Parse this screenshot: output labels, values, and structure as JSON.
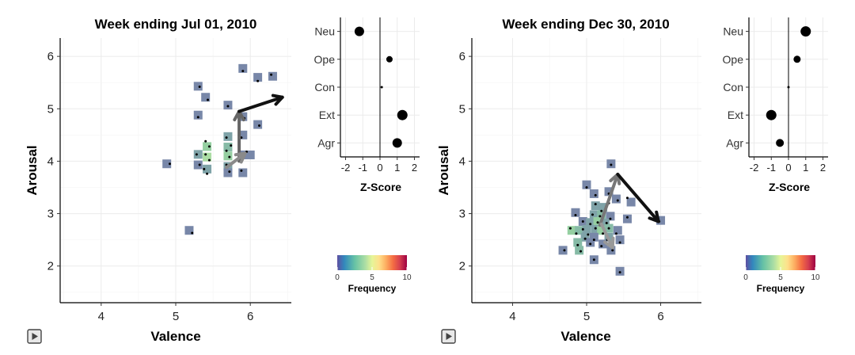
{
  "chart_data": [
    {
      "type": "heatmap",
      "panel": "left",
      "title": "Week ending Jul 01, 2010",
      "xlabel": "Valence",
      "ylabel": "Arousal",
      "xlim": [
        3.45,
        6.55
      ],
      "ylim": [
        1.3,
        6.35
      ],
      "xticks": [
        "4",
        "5",
        "6"
      ],
      "xtick_values": [
        4,
        5,
        6
      ],
      "yticks": [
        "2",
        "3",
        "4",
        "5",
        "6"
      ],
      "ytick_values": [
        2,
        3,
        4,
        5,
        6
      ],
      "grid": true,
      "cells": [
        {
          "x": 4.88,
          "y": 3.95,
          "f": 1
        },
        {
          "x": 5.18,
          "y": 2.68,
          "f": 1
        },
        {
          "x": 5.3,
          "y": 5.43,
          "f": 1
        },
        {
          "x": 5.4,
          "y": 5.22,
          "f": 1
        },
        {
          "x": 5.3,
          "y": 4.88,
          "f": 1
        },
        {
          "x": 5.7,
          "y": 5.07,
          "f": 1
        },
        {
          "x": 5.9,
          "y": 5.77,
          "f": 1
        },
        {
          "x": 6.1,
          "y": 5.6,
          "f": 1
        },
        {
          "x": 6.3,
          "y": 5.62,
          "f": 1
        },
        {
          "x": 5.9,
          "y": 4.85,
          "f": 1
        },
        {
          "x": 6.1,
          "y": 4.7,
          "f": 1
        },
        {
          "x": 5.3,
          "y": 4.13,
          "f": 2
        },
        {
          "x": 5.3,
          "y": 3.93,
          "f": 1
        },
        {
          "x": 5.42,
          "y": 4.28,
          "f": 4
        },
        {
          "x": 5.42,
          "y": 4.08,
          "f": 5
        },
        {
          "x": 5.42,
          "y": 3.85,
          "f": 2
        },
        {
          "x": 5.7,
          "y": 4.47,
          "f": 2
        },
        {
          "x": 5.7,
          "y": 4.27,
          "f": 3
        },
        {
          "x": 5.7,
          "y": 4.1,
          "f": 4
        },
        {
          "x": 5.7,
          "y": 3.9,
          "f": 2
        },
        {
          "x": 5.7,
          "y": 3.78,
          "f": 1
        },
        {
          "x": 5.9,
          "y": 4.5,
          "f": 1
        },
        {
          "x": 5.9,
          "y": 4.12,
          "f": 1
        },
        {
          "x": 6.0,
          "y": 4.12,
          "f": 1
        },
        {
          "x": 5.9,
          "y": 3.78,
          "f": 1
        }
      ],
      "points": [
        [
          4.92,
          3.95
        ],
        [
          5.22,
          2.63
        ],
        [
          5.32,
          5.42
        ],
        [
          5.43,
          5.17
        ],
        [
          5.3,
          4.84
        ],
        [
          5.7,
          5.05
        ],
        [
          5.9,
          5.72
        ],
        [
          6.1,
          5.53
        ],
        [
          6.28,
          5.65
        ],
        [
          5.92,
          4.82
        ],
        [
          6.12,
          4.68
        ],
        [
          5.28,
          4.13
        ],
        [
          5.32,
          3.93
        ],
        [
          5.4,
          4.38
        ],
        [
          5.45,
          4.28
        ],
        [
          5.4,
          4.13
        ],
        [
          5.45,
          4.02
        ],
        [
          5.38,
          3.85
        ],
        [
          5.42,
          3.76
        ],
        [
          5.68,
          4.45
        ],
        [
          5.74,
          4.3
        ],
        [
          5.68,
          4.2
        ],
        [
          5.72,
          4.08
        ],
        [
          5.68,
          3.93
        ],
        [
          5.72,
          3.8
        ],
        [
          5.88,
          4.45
        ],
        [
          5.95,
          4.18
        ],
        [
          5.88,
          3.82
        ]
      ],
      "arrows": [
        {
          "from": [
            5.85,
            4.0
          ],
          "to": [
            5.85,
            4.95
          ],
          "color": "#666666"
        },
        {
          "from": [
            5.68,
            3.88
          ],
          "to": [
            5.93,
            4.15
          ],
          "color": "#8a8a8a"
        },
        {
          "from": [
            5.85,
            4.95
          ],
          "to": [
            6.43,
            5.22
          ],
          "color": "#111111"
        }
      ],
      "zscore": {
        "xlabel": "Z-Score",
        "xlim": [
          -2.3,
          2.3
        ],
        "xticks": [
          "-2",
          "-1",
          "0",
          "1",
          "2"
        ],
        "xtick_values": [
          -2,
          -1,
          0,
          1,
          2
        ],
        "categories": [
          "Neu",
          "Ope",
          "Con",
          "Ext",
          "Agr"
        ],
        "values": [
          -1.2,
          0.55,
          0.1,
          1.3,
          1.0
        ],
        "sizes": [
          6,
          4,
          1.5,
          6.5,
          6
        ]
      },
      "legend": {
        "title": "Frequency",
        "ticks": [
          "0",
          "5",
          "10"
        ],
        "tick_values": [
          0,
          5,
          10
        ],
        "range": [
          0,
          10
        ]
      }
    },
    {
      "type": "heatmap",
      "panel": "right",
      "title": "Week ending Dec 30, 2010",
      "xlabel": "Valence",
      "ylabel": "Arousal",
      "xlim": [
        3.45,
        6.55
      ],
      "ylim": [
        1.3,
        6.35
      ],
      "xticks": [
        "4",
        "5",
        "6"
      ],
      "xtick_values": [
        4,
        5,
        6
      ],
      "yticks": [
        "2",
        "3",
        "4",
        "5",
        "6"
      ],
      "ytick_values": [
        2,
        3,
        4,
        5,
        6
      ],
      "grid": true,
      "cells": [
        {
          "x": 5.33,
          "y": 3.95,
          "f": 1
        },
        {
          "x": 5.0,
          "y": 3.55,
          "f": 1
        },
        {
          "x": 5.1,
          "y": 3.38,
          "f": 1
        },
        {
          "x": 5.3,
          "y": 3.42,
          "f": 1
        },
        {
          "x": 5.4,
          "y": 3.28,
          "f": 1
        },
        {
          "x": 5.6,
          "y": 3.22,
          "f": 1
        },
        {
          "x": 5.12,
          "y": 3.15,
          "f": 2
        },
        {
          "x": 5.22,
          "y": 3.12,
          "f": 2
        },
        {
          "x": 4.85,
          "y": 3.02,
          "f": 1
        },
        {
          "x": 5.1,
          "y": 2.98,
          "f": 2
        },
        {
          "x": 5.2,
          "y": 2.98,
          "f": 3
        },
        {
          "x": 5.32,
          "y": 2.95,
          "f": 1
        },
        {
          "x": 5.55,
          "y": 2.9,
          "f": 1
        },
        {
          "x": 6.0,
          "y": 2.87,
          "f": 1
        },
        {
          "x": 4.95,
          "y": 2.85,
          "f": 1
        },
        {
          "x": 5.05,
          "y": 2.83,
          "f": 2
        },
        {
          "x": 5.15,
          "y": 2.85,
          "f": 4
        },
        {
          "x": 5.25,
          "y": 2.82,
          "f": 2
        },
        {
          "x": 4.8,
          "y": 2.68,
          "f": 4
        },
        {
          "x": 4.9,
          "y": 2.68,
          "f": 3
        },
        {
          "x": 5.0,
          "y": 2.7,
          "f": 2
        },
        {
          "x": 5.12,
          "y": 2.7,
          "f": 2
        },
        {
          "x": 5.2,
          "y": 2.68,
          "f": 4
        },
        {
          "x": 5.3,
          "y": 2.72,
          "f": 3
        },
        {
          "x": 5.42,
          "y": 2.68,
          "f": 1
        },
        {
          "x": 4.98,
          "y": 2.55,
          "f": 2
        },
        {
          "x": 5.1,
          "y": 2.55,
          "f": 1
        },
        {
          "x": 5.3,
          "y": 2.55,
          "f": 2
        },
        {
          "x": 5.45,
          "y": 2.5,
          "f": 1
        },
        {
          "x": 4.88,
          "y": 2.45,
          "f": 3
        },
        {
          "x": 5.05,
          "y": 2.45,
          "f": 1
        },
        {
          "x": 5.22,
          "y": 2.42,
          "f": 1
        },
        {
          "x": 4.68,
          "y": 2.3,
          "f": 1
        },
        {
          "x": 4.9,
          "y": 2.3,
          "f": 3
        },
        {
          "x": 5.33,
          "y": 2.3,
          "f": 1
        },
        {
          "x": 5.1,
          "y": 2.12,
          "f": 1
        },
        {
          "x": 5.45,
          "y": 1.9,
          "f": 1
        }
      ],
      "points": [
        [
          5.33,
          3.93
        ],
        [
          5.0,
          3.5
        ],
        [
          5.12,
          3.35
        ],
        [
          5.3,
          3.38
        ],
        [
          5.42,
          3.25
        ],
        [
          5.55,
          3.3
        ],
        [
          5.12,
          3.18
        ],
        [
          5.2,
          3.05
        ],
        [
          5.3,
          3.2
        ],
        [
          4.85,
          2.97
        ],
        [
          5.08,
          2.98
        ],
        [
          5.18,
          2.95
        ],
        [
          5.32,
          2.9
        ],
        [
          5.55,
          2.93
        ],
        [
          5.98,
          2.85
        ],
        [
          4.95,
          2.85
        ],
        [
          5.05,
          2.8
        ],
        [
          5.15,
          2.83
        ],
        [
          5.27,
          2.82
        ],
        [
          4.78,
          2.72
        ],
        [
          4.86,
          2.62
        ],
        [
          4.95,
          2.7
        ],
        [
          5.02,
          2.6
        ],
        [
          5.12,
          2.72
        ],
        [
          5.22,
          2.62
        ],
        [
          5.3,
          2.72
        ],
        [
          5.4,
          2.62
        ],
        [
          4.98,
          2.52
        ],
        [
          5.1,
          2.5
        ],
        [
          5.28,
          2.5
        ],
        [
          5.45,
          2.45
        ],
        [
          4.88,
          2.4
        ],
        [
          5.05,
          2.42
        ],
        [
          5.2,
          2.38
        ],
        [
          4.7,
          2.3
        ],
        [
          4.92,
          2.28
        ],
        [
          5.35,
          2.3
        ],
        [
          5.1,
          2.12
        ],
        [
          5.45,
          1.88
        ]
      ],
      "arrows": [
        {
          "from": [
            5.18,
            2.78
          ],
          "to": [
            5.42,
            3.75
          ],
          "color": "#777777"
        },
        {
          "from": [
            5.2,
            2.8
          ],
          "to": [
            5.35,
            2.35
          ],
          "color": "#999999"
        },
        {
          "from": [
            5.42,
            3.75
          ],
          "to": [
            5.97,
            2.85
          ],
          "color": "#111111"
        }
      ],
      "zscore": {
        "xlabel": "Z-Score",
        "xlim": [
          -2.3,
          2.3
        ],
        "xticks": [
          "-2",
          "-1",
          "0",
          "1",
          "2"
        ],
        "xtick_values": [
          -2,
          -1,
          0,
          1,
          2
        ],
        "categories": [
          "Neu",
          "Ope",
          "Con",
          "Ext",
          "Agr"
        ],
        "values": [
          1.0,
          0.5,
          0.0,
          -1.0,
          -0.5
        ],
        "sizes": [
          6.5,
          4.5,
          1.5,
          6.5,
          5
        ]
      },
      "legend": {
        "title": "Frequency",
        "ticks": [
          "0",
          "5",
          "10"
        ],
        "tick_values": [
          0,
          5,
          10
        ],
        "range": [
          0,
          10
        ]
      }
    }
  ],
  "controls": {
    "play_icon": "play-icon",
    "play_glyph": "▶"
  },
  "colors": {
    "cell_low": "#5e4fa2",
    "cell_mid": "#abdda4",
    "cell_high": "#9e0142",
    "arrow_dark": "#111111",
    "axis": "#000000",
    "grid": "#ebebeb"
  }
}
